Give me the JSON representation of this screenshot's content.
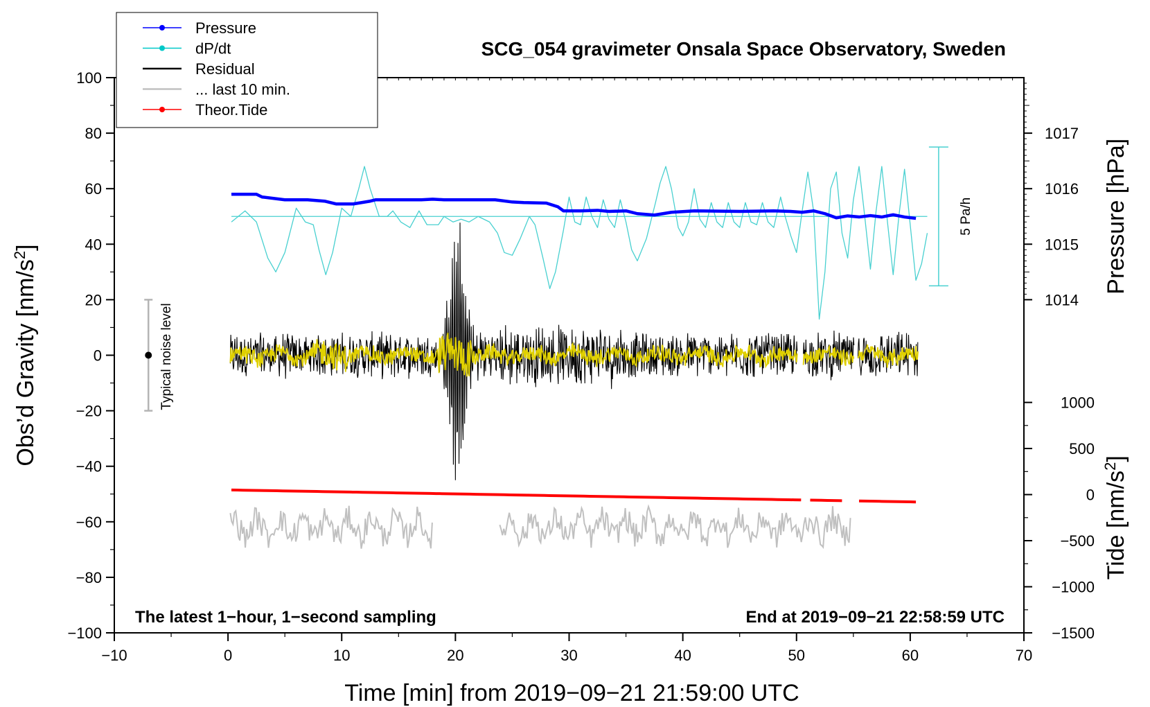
{
  "chart_data": {
    "type": "line",
    "title": "SCG_054 gravimeter Onsala Space Observatory, Sweden",
    "xlabel": "Time [min] from 2019−09−21 21:59:00 UTC",
    "ylabel_left": "Obs’d Gravity [nm/s",
    "ylabel_left_sup": "2",
    "ylabel_left_end": "]",
    "ylabel_right_pressure": "Pressure [hPa]",
    "ylabel_right_tide": "Tide [nm/s",
    "ylabel_right_tide_sup": "2",
    "ylabel_right_tide_end": "]",
    "xlim": [
      -10,
      70
    ],
    "ylim": [
      -100,
      100
    ],
    "x_ticks": [
      -10,
      0,
      10,
      20,
      30,
      40,
      50,
      60,
      70
    ],
    "x_tick_labels": [
      "−10",
      "0",
      "10",
      "20",
      "30",
      "40",
      "50",
      "60",
      "70"
    ],
    "y_ticks": [
      100,
      80,
      60,
      40,
      20,
      0,
      -20,
      -40,
      -60,
      -80,
      -100
    ],
    "y_tick_labels": [
      "100",
      "80",
      "60",
      "40",
      "20",
      "0",
      "−20",
      "−40",
      "−60",
      "−80",
      "−100"
    ],
    "pressure_axis": {
      "ticks": [
        1017,
        1016,
        1015,
        1014
      ],
      "tick_labels": [
        "1017",
        "1016",
        "1015",
        "1014"
      ],
      "map": {
        "value_a": 1017,
        "gravity_a": 80,
        "value_b": 1014,
        "gravity_b": 20
      }
    },
    "tide_axis": {
      "ticks": [
        1000,
        500,
        0,
        -500,
        -1000,
        -1500
      ],
      "tick_labels": [
        "1000",
        "500",
        "0",
        "−500",
        "−1000",
        "−1500"
      ],
      "map": {
        "value_a": 1000,
        "gravity_a": -17,
        "value_b": -1500,
        "gravity_b": -100
      }
    },
    "annotations": {
      "bottom_left": "The latest 1−hour, 1−second sampling",
      "bottom_right": "End at 2019−09−21 22:58:59 UTC",
      "noise_label": "Typical noise level",
      "rate_label": "5 Pa/h"
    },
    "noise_bar": {
      "x": -7,
      "center": 0,
      "low": -20,
      "high": 20
    },
    "rate_bar": {
      "x": 62.5,
      "low": 25,
      "high": 75
    },
    "legend": [
      {
        "label": "Pressure",
        "color": "#0000ff",
        "marker": true
      },
      {
        "label": "dP/dt",
        "color": "#00c8c8",
        "marker": true
      },
      {
        "label": "Residual",
        "color": "#000000",
        "marker": false
      },
      {
        "label": "... last 10 min.",
        "color": "#c0c0c0",
        "marker": false
      },
      {
        "label": "Theor.Tide",
        "color": "#ff0000",
        "marker": true
      }
    ],
    "series": [
      {
        "name": "Pressure",
        "color": "#0000ff",
        "points": [
          [
            0.3,
            58
          ],
          [
            2.5,
            58
          ],
          [
            3.0,
            57
          ],
          [
            5,
            56
          ],
          [
            7,
            56
          ],
          [
            8.5,
            55.5
          ],
          [
            9.5,
            54.5
          ],
          [
            11,
            54.5
          ],
          [
            12.5,
            55.5
          ],
          [
            13,
            56
          ],
          [
            17,
            56
          ],
          [
            18,
            56.2
          ],
          [
            19,
            56
          ],
          [
            23.5,
            56
          ],
          [
            25,
            55.2
          ],
          [
            26,
            55
          ],
          [
            28,
            54.8
          ],
          [
            29,
            53.5
          ],
          [
            29.5,
            52
          ],
          [
            31,
            52
          ],
          [
            32.5,
            52.2
          ],
          [
            33.5,
            51.8
          ],
          [
            35,
            52
          ],
          [
            36,
            51
          ],
          [
            37.5,
            50.5
          ],
          [
            39,
            51.5
          ],
          [
            41,
            52
          ],
          [
            45,
            51.8
          ],
          [
            48,
            52
          ],
          [
            49.5,
            51.8
          ],
          [
            50.5,
            51.5
          ],
          [
            51.5,
            52
          ],
          [
            52.5,
            51
          ],
          [
            53.5,
            49.5
          ],
          [
            54.5,
            50.2
          ],
          [
            55.5,
            49.8
          ],
          [
            56.5,
            50.3
          ],
          [
            57.5,
            49.8
          ],
          [
            58.5,
            50.6
          ],
          [
            59.5,
            49.8
          ],
          [
            60.5,
            49.3
          ]
        ]
      },
      {
        "name": "dP/dt",
        "color": "#48d0d0",
        "baseline": 50,
        "points": [
          [
            0.3,
            48
          ],
          [
            1.5,
            52
          ],
          [
            2.5,
            48
          ],
          [
            3.5,
            35
          ],
          [
            4.2,
            30
          ],
          [
            5,
            37
          ],
          [
            6,
            53
          ],
          [
            6.8,
            48
          ],
          [
            7.5,
            47
          ],
          [
            8,
            38
          ],
          [
            8.6,
            29
          ],
          [
            9.2,
            37
          ],
          [
            10,
            53
          ],
          [
            10.8,
            50
          ],
          [
            11.5,
            60
          ],
          [
            12,
            68
          ],
          [
            12.5,
            60
          ],
          [
            13.3,
            50
          ],
          [
            14,
            50
          ],
          [
            14.5,
            52
          ],
          [
            15.2,
            48
          ],
          [
            16,
            46
          ],
          [
            16.8,
            52
          ],
          [
            17.5,
            47
          ],
          [
            18.5,
            47
          ],
          [
            19,
            50
          ],
          [
            19.8,
            48
          ],
          [
            20.5,
            49
          ],
          [
            21.2,
            48
          ],
          [
            22,
            50
          ],
          [
            23,
            48
          ],
          [
            23.7,
            44
          ],
          [
            24.3,
            37
          ],
          [
            25,
            36
          ],
          [
            25.7,
            42
          ],
          [
            26.5,
            50
          ],
          [
            27,
            47
          ],
          [
            27.7,
            35
          ],
          [
            28.3,
            24
          ],
          [
            28.8,
            30
          ],
          [
            29.5,
            45
          ],
          [
            30,
            57
          ],
          [
            30.5,
            48
          ],
          [
            31,
            47
          ],
          [
            31.5,
            57
          ],
          [
            32,
            50
          ],
          [
            32.5,
            46
          ],
          [
            33,
            56
          ],
          [
            33.5,
            49
          ],
          [
            34,
            46
          ],
          [
            34.5,
            56
          ],
          [
            35,
            48
          ],
          [
            35.5,
            38
          ],
          [
            36,
            34
          ],
          [
            36.8,
            42
          ],
          [
            37.6,
            55
          ],
          [
            38,
            62
          ],
          [
            38.5,
            68
          ],
          [
            39,
            60
          ],
          [
            39.6,
            46
          ],
          [
            40,
            43
          ],
          [
            40.5,
            48
          ],
          [
            41,
            60
          ],
          [
            41.5,
            49
          ],
          [
            42,
            46
          ],
          [
            42.5,
            55
          ],
          [
            43,
            48
          ],
          [
            43.5,
            46
          ],
          [
            44,
            55
          ],
          [
            44.5,
            48
          ],
          [
            45,
            46
          ],
          [
            45.5,
            55
          ],
          [
            46,
            48
          ],
          [
            46.5,
            47
          ],
          [
            47,
            55
          ],
          [
            47.5,
            48
          ],
          [
            48,
            46
          ],
          [
            48.6,
            57
          ],
          [
            49,
            50
          ],
          [
            49.5,
            43
          ],
          [
            50,
            37
          ],
          [
            50.5,
            52
          ],
          [
            51,
            66
          ],
          [
            51.5,
            52
          ],
          [
            52,
            13
          ],
          [
            52.5,
            30
          ],
          [
            53,
            60
          ],
          [
            53.5,
            66
          ],
          [
            54,
            44
          ],
          [
            54.5,
            35
          ],
          [
            55,
            56
          ],
          [
            55.5,
            68
          ],
          [
            56,
            50
          ],
          [
            56.5,
            31
          ],
          [
            57,
            52
          ],
          [
            57.5,
            68
          ],
          [
            58,
            48
          ],
          [
            58.5,
            29
          ],
          [
            59,
            50
          ],
          [
            59.5,
            67
          ],
          [
            60,
            47
          ],
          [
            60.5,
            27
          ],
          [
            61,
            33
          ],
          [
            61.5,
            44
          ]
        ]
      },
      {
        "name": "Residual",
        "color": "#000000",
        "segments": [
          [
            0.2,
            50.1
          ],
          [
            50.6,
            55.1
          ],
          [
            55.4,
            60.7
          ]
        ],
        "noise_amplitude": 8,
        "event_center": 20.2,
        "event_peak": 45,
        "event_width": 0.9
      },
      {
        "name": "Residual smoothed",
        "color": "#e0d000",
        "segments": [
          [
            0.2,
            50.1
          ],
          [
            50.6,
            55.1
          ],
          [
            55.4,
            60.7
          ]
        ]
      },
      {
        "name": "... last 10 min.",
        "color": "#c0c0c0",
        "segments": [
          [
            0.2,
            18
          ],
          [
            23.9,
            54.8
          ]
        ],
        "base": -62,
        "amplitude": 6
      },
      {
        "name": "Theor.Tide",
        "color": "#ff0000",
        "segments": [
          [
            0.3,
            50.4
          ],
          [
            51.2,
            54.0
          ],
          [
            55.5,
            60.5
          ]
        ],
        "start_value": 50,
        "end_value": -80
      }
    ]
  }
}
